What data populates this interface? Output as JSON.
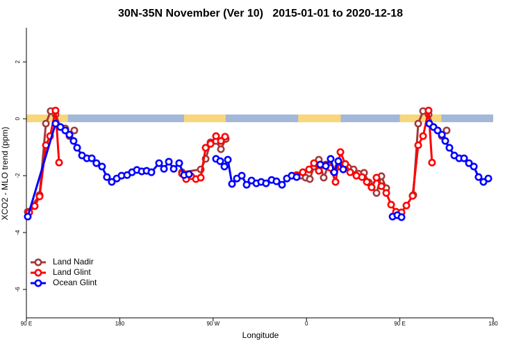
{
  "chart_data": {
    "type": "line",
    "title": "30N-35N November (Ver 10)   2015-01-01 to 2020-12-18",
    "xlabel": "Longitude",
    "ylabel": "XCO2 - MLO trend (ppm)",
    "xlim": [
      90,
      540
    ],
    "xticks": [
      {
        "value": 90,
        "label": "90 E"
      },
      180,
      {
        "value": 270,
        "label": "90 W"
      },
      {
        "value": 360,
        "label": "0"
      },
      {
        "value": 450,
        "label": "90 E"
      },
      {
        "value": 540,
        "label": "180"
      }
    ],
    "ylim": [
      -7,
      3.2
    ],
    "yticks": [
      -6,
      -4,
      -2,
      0,
      2
    ],
    "legend": "bottom-left",
    "surface_band": {
      "ylim": [
        -0.12,
        0.15
      ],
      "ocean_color": "#a3b8d8",
      "land_color": "#f8d77a",
      "land_ranges": [
        [
          90,
          130
        ],
        [
          242,
          282
        ],
        [
          352,
          393
        ],
        [
          450,
          490
        ]
      ]
    },
    "series": [
      {
        "name": "Land Nadir",
        "color": "#a33a3a",
        "x": [
          91.3,
          102.7,
          108.8,
          113.4,
          118.1,
          122.8,
          127.5,
          131.5,
          136.2,
          null,
          240,
          258.1,
          262.8,
          267.5,
          272.8,
          277.5,
          282.2,
          null,
          354.5,
          359.2,
          363.2,
          367.2,
          371.9,
          376.6,
          381.3,
          386,
          390.7,
          395.4,
          400.1,
          405.4,
          410.1,
          415.5,
          420.1,
          427.5,
          432.2,
          436.9,
          null,
          463,
          467.7,
          472.4,
          477.7,
          482.4,
          486.4,
          490.5,
          495.1
        ],
        "values": [
          -3.27,
          -2.68,
          -0.17,
          0.27,
          0.15,
          -0.29,
          -0.34,
          -0.61,
          -0.41,
          null,
          -1.88,
          -1.78,
          -1.41,
          -0.83,
          -0.78,
          -1.07,
          -0.71,
          null,
          -2.0,
          -2.07,
          -2.12,
          -1.68,
          -1.44,
          -2.07,
          -1.63,
          -1.85,
          -1.68,
          -1.63,
          -1.71,
          -1.78,
          -1.93,
          -1.9,
          -2.24,
          -2.61,
          -2.02,
          -2.44,
          null,
          -2.68,
          -0.17,
          0.27,
          0.15,
          -0.29,
          -0.41,
          -0.61,
          -0.41
        ]
      },
      {
        "name": "Land Glint",
        "color": "#ff0000",
        "x": [
          92.7,
          98,
          102.7,
          108.8,
          112.8,
          118.1,
          121.5,
          null,
          240,
          244,
          248.7,
          253.4,
          258.1,
          262.8,
          267.5,
          272.8,
          277.5,
          281.5,
          null,
          350.5,
          356.5,
          362.5,
          367.2,
          371.9,
          378.6,
          383.3,
          388,
          392.7,
          397.4,
          402.1,
          408.1,
          413.5,
          418.2,
          422.8,
          427.5,
          432.2,
          436.9,
          441.6,
          446.3,
          451.6,
          456.3,
          462.3,
          467.7,
          472.4,
          477.7,
          481
        ],
        "values": [
          -3.29,
          -3.07,
          -2.73,
          -0.93,
          -0.61,
          0.29,
          -1.54,
          null,
          -1.93,
          -2.12,
          -2.02,
          -2.12,
          -2.07,
          -1.02,
          -0.88,
          -0.61,
          -0.78,
          -0.63,
          null,
          -1.98,
          -1.88,
          -1.78,
          -1.56,
          -1.83,
          -1.61,
          -1.73,
          -2.22,
          -1.17,
          -1.59,
          -1.88,
          -2.0,
          -2.05,
          -2.22,
          -2.41,
          -2.07,
          -2.37,
          -2.61,
          -3.02,
          -3.27,
          -3.29,
          -3.05,
          -2.71,
          -0.93,
          -0.61,
          0.29,
          -1.54
        ]
      },
      {
        "name": "Ocean Glint",
        "color": "#0000ff",
        "x": [
          91.3,
          118.1,
          122.8,
          127.5,
          131.5,
          135.5,
          138.9,
          143.6,
          148.3,
          153,
          157.5,
          162.9,
          167.6,
          172.3,
          177.1,
          181.7,
          187.1,
          191.8,
          196.5,
          201.2,
          205.9,
          210.5,
          217.9,
          222.6,
          227.3,
          232,
          237.3,
          242,
          246.7,
          null,
          272.8,
          276.8,
          280.9,
          284.2,
          288.2,
          292.9,
          297.6,
          302.3,
          307,
          311.7,
          316.3,
          321,
          326.4,
          331.1,
          336.4,
          341.1,
          345.8,
          350.5,
          null,
          373.3,
          378.6,
          383.3,
          386.7,
          390.7,
          395.4,
          null,
          443,
          447.6,
          451.6,
          null,
          478.4,
          482.4,
          486.4,
          490.5,
          493.8,
          497.8,
          502.5,
          507.2,
          511.9,
          516.6,
          521.3,
          525.9,
          530.6,
          535.3
        ],
        "values": [
          -3.44,
          -0.17,
          -0.29,
          -0.41,
          -0.56,
          -0.78,
          -1.02,
          -1.29,
          -1.39,
          -1.39,
          -1.56,
          -1.68,
          -2.05,
          -2.22,
          -2.1,
          -2.0,
          -1.98,
          -1.88,
          -1.8,
          -1.85,
          -1.83,
          -1.88,
          -1.56,
          -1.76,
          -1.51,
          -1.76,
          -1.56,
          -1.98,
          -1.95,
          null,
          -1.41,
          -1.49,
          -1.68,
          -1.44,
          -2.29,
          -2.1,
          -2.0,
          -2.32,
          -2.17,
          -2.27,
          -2.22,
          -2.27,
          -2.15,
          -2.2,
          -2.32,
          -2.1,
          -2.0,
          -2.05,
          null,
          -1.61,
          -1.66,
          -1.41,
          -1.88,
          -1.49,
          -1.78,
          null,
          -3.44,
          -3.39,
          -3.46,
          null,
          -0.17,
          -0.29,
          -0.41,
          -0.56,
          -0.78,
          -1.02,
          -1.29,
          -1.39,
          -1.39,
          -1.56,
          -1.68,
          -2.05,
          -2.22,
          -2.1
        ]
      }
    ]
  }
}
